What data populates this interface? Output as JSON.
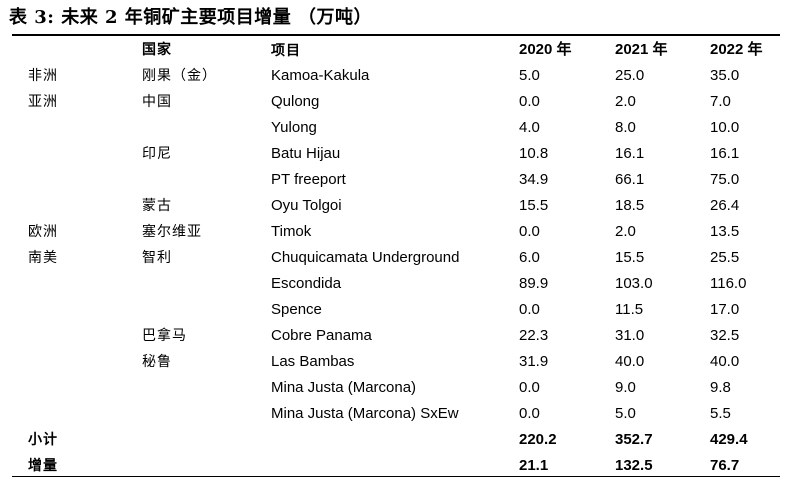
{
  "title": "表 3:  未来 2 年铜矿主要项目增量  （万吨）",
  "header": {
    "region": "",
    "country": "国家",
    "project": "项目",
    "y2020": "2020 年",
    "y2021": "2021 年",
    "y2022": "2022 年"
  },
  "rows": [
    {
      "region": "非洲",
      "country": "刚果（金）",
      "project": "Kamoa-Kakula",
      "y2020": "5.0",
      "y2021": "25.0",
      "y2022": "35.0"
    },
    {
      "region": "亚洲",
      "country": "中国",
      "project": "Qulong",
      "y2020": "0.0",
      "y2021": "2.0",
      "y2022": "7.0"
    },
    {
      "region": "",
      "country": "",
      "project": "Yulong",
      "y2020": "4.0",
      "y2021": "8.0",
      "y2022": "10.0"
    },
    {
      "region": "",
      "country": "印尼",
      "project": "Batu Hijau",
      "y2020": "10.8",
      "y2021": "16.1",
      "y2022": "16.1"
    },
    {
      "region": "",
      "country": "",
      "project": "PT freeport",
      "y2020": "34.9",
      "y2021": "66.1",
      "y2022": "75.0"
    },
    {
      "region": "",
      "country": "蒙古",
      "project": "Oyu Tolgoi",
      "y2020": "15.5",
      "y2021": "18.5",
      "y2022": "26.4"
    },
    {
      "region": "欧洲",
      "country": "塞尔维亚",
      "project": "Timok",
      "y2020": "0.0",
      "y2021": "2.0",
      "y2022": "13.5"
    },
    {
      "region": "南美",
      "country": "智利",
      "project": "Chuquicamata Underground",
      "y2020": "6.0",
      "y2021": "15.5",
      "y2022": "25.5"
    },
    {
      "region": "",
      "country": "",
      "project": "Escondida",
      "y2020": "89.9",
      "y2021": "103.0",
      "y2022": "116.0"
    },
    {
      "region": "",
      "country": "",
      "project": "Spence",
      "y2020": "0.0",
      "y2021": "11.5",
      "y2022": "17.0"
    },
    {
      "region": "",
      "country": "巴拿马",
      "project": "Cobre Panama",
      "y2020": "22.3",
      "y2021": "31.0",
      "y2022": "32.5"
    },
    {
      "region": "",
      "country": "秘鲁",
      "project": "Las Bambas",
      "y2020": "31.9",
      "y2021": "40.0",
      "y2022": "40.0"
    },
    {
      "region": "",
      "country": "",
      "project": "Mina Justa (Marcona)",
      "y2020": "0.0",
      "y2021": "9.0",
      "y2022": "9.8"
    },
    {
      "region": "",
      "country": "",
      "project": "Mina Justa (Marcona) SxEw",
      "y2020": "0.0",
      "y2021": "5.0",
      "y2022": "5.5"
    }
  ],
  "subtotal": {
    "label": "小计",
    "y2020": "220.2",
    "y2021": "352.7",
    "y2022": "429.4"
  },
  "increment": {
    "label": "增量",
    "y2020": "21.1",
    "y2021": "132.5",
    "y2022": "76.7"
  }
}
